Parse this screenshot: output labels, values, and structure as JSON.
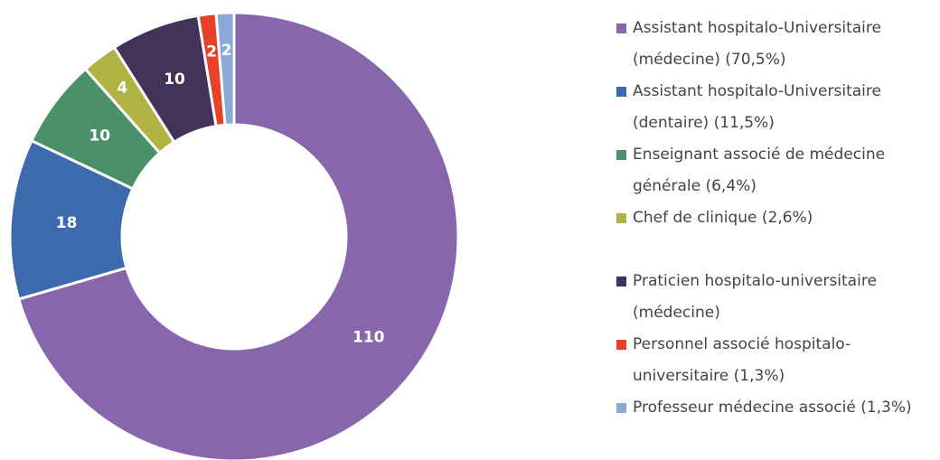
{
  "chart_data": {
    "type": "donut",
    "categories": [
      "Assistant hospitalo-Universitaire (médecine) (70,5%)",
      "Assistant hospitalo-Universitaire (dentaire) (11,5%)",
      "Enseignant associé de médecine générale (6,4%)",
      "Chef de clinique (2,6%)",
      "Praticien hospitalo-universitaire (médecine)",
      "Personnel associé  hospitalo-universitaire (1,3%)",
      "Professeur médecine associé (1,3%)"
    ],
    "values": [
      110,
      18,
      10,
      4,
      10,
      2,
      2
    ],
    "colors": [
      "#8766ac",
      "#3c6aad",
      "#4a9068",
      "#b0b342",
      "#43325a",
      "#e8412a",
      "#8ba9d6"
    ],
    "legend": "right"
  }
}
